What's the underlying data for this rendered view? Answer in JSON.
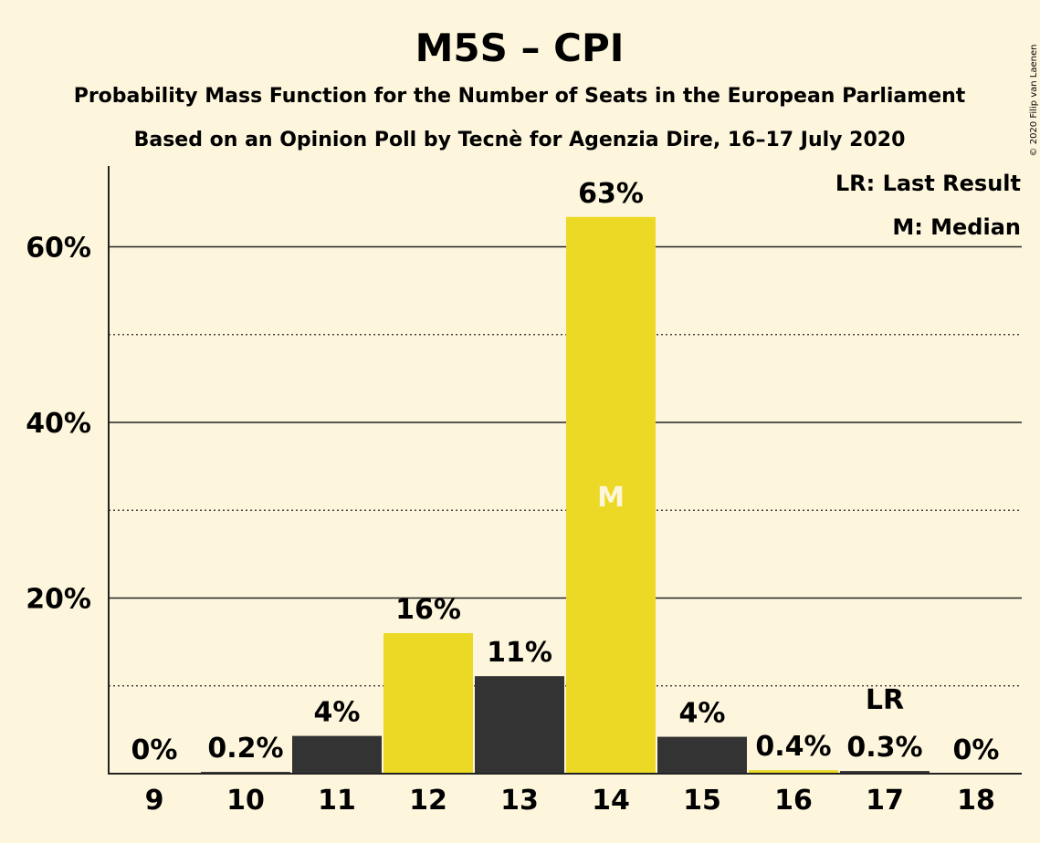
{
  "title": "M5S – CPI",
  "subtitle1": "Probability Mass Function for the Number of Seats in the European Parliament",
  "subtitle2": "Based on an Opinion Poll by Tecnè for Agenzia Dire, 16–17 July 2020",
  "copyright": "© 2020 Filip van Laenen",
  "legend": {
    "last_result": "LR: Last Result",
    "median": "M: Median"
  },
  "colors": {
    "background": "#fdf6dc",
    "yellow": "#ecd925",
    "dark": "#333333",
    "text": "#222222"
  },
  "chart_data": {
    "type": "bar",
    "categories": [
      "9",
      "10",
      "11",
      "12",
      "13",
      "14",
      "15",
      "16",
      "17",
      "18"
    ],
    "values": [
      0,
      0.2,
      4.3,
      16.0,
      11.1,
      63.4,
      4.2,
      0.4,
      0.3,
      0
    ],
    "value_labels": [
      "0%",
      "0.2%",
      "4%",
      "16%",
      "11%",
      "63%",
      "4%",
      "0.4%",
      "0.3%",
      "0%"
    ],
    "bar_colors": [
      "dark",
      "dark",
      "dark",
      "yellow",
      "dark",
      "yellow",
      "dark",
      "yellow",
      "dark",
      "dark"
    ],
    "yticks": [
      20,
      40,
      60
    ],
    "ytick_labels": [
      "20%",
      "40%",
      "60%"
    ],
    "minor_gridlines": [
      10,
      30,
      50
    ],
    "ylim": [
      0,
      69.2
    ],
    "median_category": "14",
    "median_marker": "M",
    "last_result_category": "17",
    "last_result_marker": "LR"
  }
}
